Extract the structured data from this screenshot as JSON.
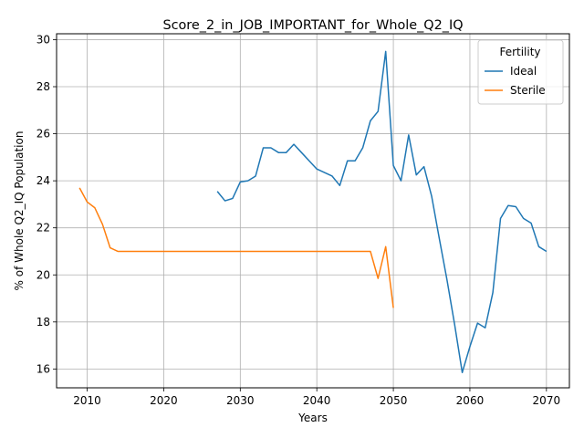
{
  "chart_data": {
    "type": "line",
    "title": "Score_2_in_JOB_IMPORTANT_for_Whole_Q2_IQ",
    "xlabel": "Years",
    "ylabel": "% of Whole Q2_IQ Population",
    "xlim": [
      2006,
      2073
    ],
    "ylim": [
      15.2,
      30.25
    ],
    "xticks": [
      2010,
      2020,
      2030,
      2040,
      2050,
      2060,
      2070
    ],
    "yticks": [
      16,
      18,
      20,
      22,
      24,
      26,
      28,
      30
    ],
    "grid": true,
    "legend": {
      "title": "Fertility",
      "placement": "top-right"
    },
    "series": [
      {
        "name": "Ideal",
        "color": "#1f77b4",
        "x": [
          2027,
          2028,
          2029,
          2030,
          2031,
          2032,
          2033,
          2034,
          2035,
          2036,
          2037,
          2038,
          2039,
          2040,
          2041,
          2042,
          2043,
          2044,
          2045,
          2046,
          2047,
          2048,
          2049,
          2050,
          2051,
          2052,
          2053,
          2054,
          2055,
          2056,
          2057,
          2058,
          2059,
          2060,
          2061,
          2062,
          2063,
          2064,
          2065,
          2066,
          2067,
          2068,
          2069,
          2070
        ],
        "values": [
          23.55,
          23.15,
          23.25,
          23.95,
          24.0,
          24.2,
          25.4,
          25.4,
          25.2,
          25.2,
          25.55,
          25.2,
          24.85,
          24.5,
          24.35,
          24.2,
          23.8,
          24.85,
          24.85,
          25.4,
          26.55,
          26.95,
          29.5,
          24.65,
          24.0,
          25.95,
          24.25,
          24.6,
          23.35,
          21.55,
          19.8,
          17.9,
          15.85,
          16.95,
          17.95,
          17.75,
          19.25,
          22.4,
          22.95,
          22.9,
          22.4,
          22.2,
          21.2,
          21.0
        ]
      },
      {
        "name": "Sterile",
        "color": "#ff7f0e",
        "x": [
          2009,
          2010,
          2011,
          2012,
          2013,
          2014,
          2015,
          2016,
          2017,
          2018,
          2019,
          2020,
          2021,
          2022,
          2023,
          2024,
          2025,
          2026,
          2027,
          2028,
          2029,
          2030,
          2031,
          2032,
          2033,
          2034,
          2035,
          2036,
          2037,
          2038,
          2039,
          2040,
          2041,
          2042,
          2043,
          2044,
          2045,
          2046,
          2047,
          2048,
          2049,
          2050
        ],
        "values": [
          23.7,
          23.1,
          22.85,
          22.15,
          21.15,
          21.0,
          21.0,
          21.0,
          21.0,
          21.0,
          21.0,
          21.0,
          21.0,
          21.0,
          21.0,
          21.0,
          21.0,
          21.0,
          21.0,
          21.0,
          21.0,
          21.0,
          21.0,
          21.0,
          21.0,
          21.0,
          21.0,
          21.0,
          21.0,
          21.0,
          21.0,
          21.0,
          21.0,
          21.0,
          21.0,
          21.0,
          21.0,
          21.0,
          21.0,
          19.85,
          21.2,
          18.6
        ]
      }
    ]
  }
}
